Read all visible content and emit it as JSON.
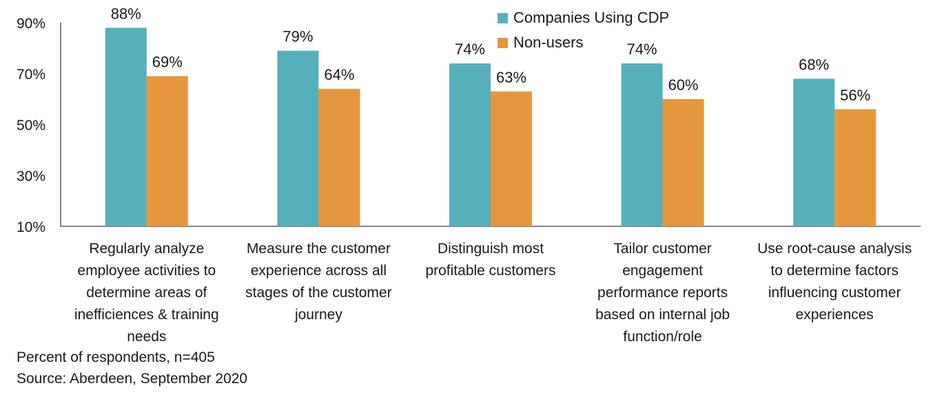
{
  "chart_data": {
    "type": "bar",
    "categories": [
      "Regularly analyze employee activities to determine areas of inefficiences & training needs",
      "Measure the customer experience across all stages of the customer journey",
      "Distinguish most profitable customers",
      "Tailor customer engagement performance reports based on internal job function/role",
      "Use root-cause analysis to determine factors influencing customer experiences"
    ],
    "category_lines": [
      [
        "Regularly analyze",
        "employee activities to",
        "determine areas of",
        "inefficiences & training",
        "needs"
      ],
      [
        "Measure the customer",
        "experience across all",
        "stages of the customer",
        "journey"
      ],
      [
        "Distinguish most",
        "profitable customers"
      ],
      [
        "Tailor customer",
        "engagement",
        "performance reports",
        "based on internal job",
        "function/role"
      ],
      [
        "Use root-cause analysis",
        "to determine factors",
        "influencing customer",
        "experiences"
      ]
    ],
    "series": [
      {
        "name": "Companies Using CDP",
        "values": [
          88,
          79,
          74,
          74,
          68
        ],
        "labels": [
          "88%",
          "79%",
          "74%",
          "74%",
          "68%"
        ],
        "color": "#56b0bb"
      },
      {
        "name": "Non-users",
        "values": [
          69,
          64,
          63,
          60,
          56
        ],
        "labels": [
          "69%",
          "64%",
          "63%",
          "60%",
          "56%"
        ],
        "color": "#e5963f"
      }
    ],
    "ylim": [
      10,
      90
    ],
    "yticks": [
      10,
      30,
      50,
      70,
      90
    ],
    "ytick_labels": [
      "10%",
      "30%",
      "50%",
      "70%",
      "90%"
    ],
    "legend_position": "top",
    "grid": false
  },
  "notes": {
    "line1": "Percent of respondents, n=405",
    "line2": "Source: Aberdeen, September 2020"
  }
}
